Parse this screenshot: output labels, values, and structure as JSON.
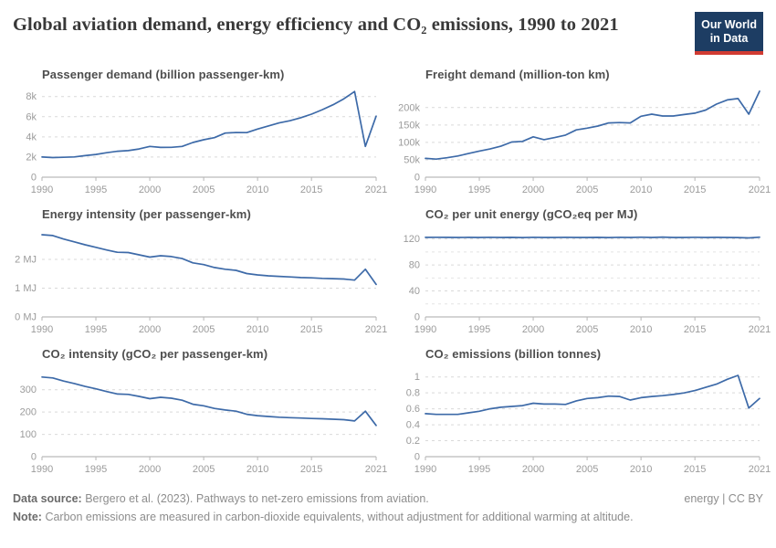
{
  "header": {
    "title": "Global aviation demand, energy efficiency and CO₂ emissions, 1990 to 2021",
    "logo_line1": "Our World",
    "logo_line2": "in Data"
  },
  "colors": {
    "line": "#3d6aa8",
    "logo_navy": "#1d3d63",
    "logo_red": "#d13b32"
  },
  "footer": {
    "source_label": "Data source:",
    "source_text": "Bergero et al. (2023). Pathways to net-zero emissions from aviation.",
    "credit": "energy | CC BY",
    "note_label": "Note:",
    "note_text": "Carbon emissions are measured in carbon-dioxide equivalents, without adjustment for additional warming at altitude."
  },
  "chart_data": {
    "type": "line",
    "grid": "dashed-horizontal",
    "legend_position": "none",
    "x_years": [
      1990,
      1991,
      1992,
      1993,
      1994,
      1995,
      1996,
      1997,
      1998,
      1999,
      2000,
      2001,
      2002,
      2003,
      2004,
      2005,
      2006,
      2007,
      2008,
      2009,
      2010,
      2011,
      2012,
      2013,
      2014,
      2015,
      2016,
      2017,
      2018,
      2019,
      2020,
      2021
    ],
    "x_ticks": [
      1990,
      1995,
      2000,
      2005,
      2010,
      2015,
      2021
    ],
    "panels": [
      {
        "title": "Passenger demand (billion passenger-km)",
        "ylim": [
          0,
          8700
        ],
        "yticks": [
          {
            "v": 0,
            "label": "0"
          },
          {
            "v": 2000,
            "label": "2k"
          },
          {
            "v": 4000,
            "label": "4k"
          },
          {
            "v": 6000,
            "label": "6k"
          },
          {
            "v": 8000,
            "label": "8k"
          }
        ],
        "values": [
          2000,
          1945,
          1975,
          2015,
          2140,
          2260,
          2430,
          2570,
          2640,
          2800,
          3050,
          2950,
          2960,
          3050,
          3440,
          3720,
          3920,
          4380,
          4430,
          4420,
          4780,
          5080,
          5380,
          5600,
          5900,
          6250,
          6700,
          7190,
          7780,
          8500,
          3050,
          6050
        ]
      },
      {
        "title": "Freight demand (million-ton km)",
        "ylim": [
          0,
          252000
        ],
        "yticks": [
          {
            "v": 0,
            "label": "0"
          },
          {
            "v": 50000,
            "label": "50k"
          },
          {
            "v": 100000,
            "label": "100k"
          },
          {
            "v": 150000,
            "label": "150k"
          },
          {
            "v": 200000,
            "label": "200k"
          }
        ],
        "values": [
          54000,
          52000,
          56000,
          61000,
          68000,
          75000,
          81000,
          89000,
          101000,
          103000,
          116000,
          108000,
          114000,
          121000,
          136000,
          141000,
          147000,
          156000,
          157000,
          156000,
          175000,
          181000,
          176000,
          176000,
          180000,
          184000,
          193000,
          210000,
          222000,
          226000,
          181000,
          247000
        ]
      },
      {
        "title": "Energy intensity (per passenger-km)",
        "ylim": [
          0,
          3.05
        ],
        "yticks": [
          {
            "v": 0,
            "label": "0 MJ"
          },
          {
            "v": 1,
            "label": "1 MJ"
          },
          {
            "v": 2,
            "label": "2 MJ"
          }
        ],
        "values": [
          2.86,
          2.83,
          2.71,
          2.61,
          2.51,
          2.42,
          2.33,
          2.25,
          2.24,
          2.16,
          2.08,
          2.13,
          2.1,
          2.03,
          1.88,
          1.82,
          1.72,
          1.66,
          1.62,
          1.51,
          1.46,
          1.43,
          1.41,
          1.39,
          1.37,
          1.36,
          1.34,
          1.33,
          1.32,
          1.28,
          1.66,
          1.13
        ]
      },
      {
        "title": "CO₂ per unit energy (gCO₂eq per MJ)",
        "ylim": [
          0,
          135
        ],
        "yticks": [
          {
            "v": 0,
            "label": "0"
          },
          {
            "v": 20,
            "label": ""
          },
          {
            "v": 40,
            "label": "40"
          },
          {
            "v": 60,
            "label": ""
          },
          {
            "v": 80,
            "label": "80"
          },
          {
            "v": 100,
            "label": ""
          },
          {
            "v": 120,
            "label": "120"
          }
        ],
        "values": [
          122.5,
          122.6,
          122.5,
          122.4,
          122.5,
          122.4,
          122.6,
          122.3,
          122.5,
          122.2,
          122.6,
          122.4,
          122.3,
          122.6,
          122.4,
          122.3,
          122.5,
          122.2,
          122.6,
          122.3,
          122.8,
          122.4,
          122.9,
          122.3,
          122.4,
          122.6,
          122.3,
          122.5,
          122.3,
          122.2,
          121.6,
          122.8
        ]
      },
      {
        "title": "CO₂ intensity (gCO₂ per passenger-km)",
        "ylim": [
          0,
          393
        ],
        "yticks": [
          {
            "v": 0,
            "label": "0"
          },
          {
            "v": 100,
            "label": "100"
          },
          {
            "v": 200,
            "label": "200"
          },
          {
            "v": 300,
            "label": "300"
          }
        ],
        "values": [
          357,
          353,
          339,
          328,
          315,
          304,
          292,
          281,
          279,
          270,
          260,
          266,
          262,
          253,
          235,
          228,
          216,
          209,
          204,
          190,
          184,
          180,
          177,
          175,
          173,
          171,
          170,
          168,
          166,
          160,
          204,
          140
        ]
      },
      {
        "title": "CO₂ emissions (billion tonnes)",
        "ylim": [
          0,
          1.1
        ],
        "yticks": [
          {
            "v": 0,
            "label": "0"
          },
          {
            "v": 0.2,
            "label": "0.2"
          },
          {
            "v": 0.4,
            "label": "0.4"
          },
          {
            "v": 0.6,
            "label": "0.6"
          },
          {
            "v": 0.8,
            "label": "0.8"
          },
          {
            "v": 1,
            "label": "1"
          }
        ],
        "values": [
          0.54,
          0.53,
          0.53,
          0.53,
          0.55,
          0.57,
          0.6,
          0.62,
          0.63,
          0.64,
          0.67,
          0.66,
          0.66,
          0.655,
          0.7,
          0.73,
          0.74,
          0.76,
          0.755,
          0.71,
          0.74,
          0.755,
          0.765,
          0.78,
          0.8,
          0.83,
          0.87,
          0.91,
          0.97,
          1.02,
          0.61,
          0.73
        ]
      }
    ]
  }
}
